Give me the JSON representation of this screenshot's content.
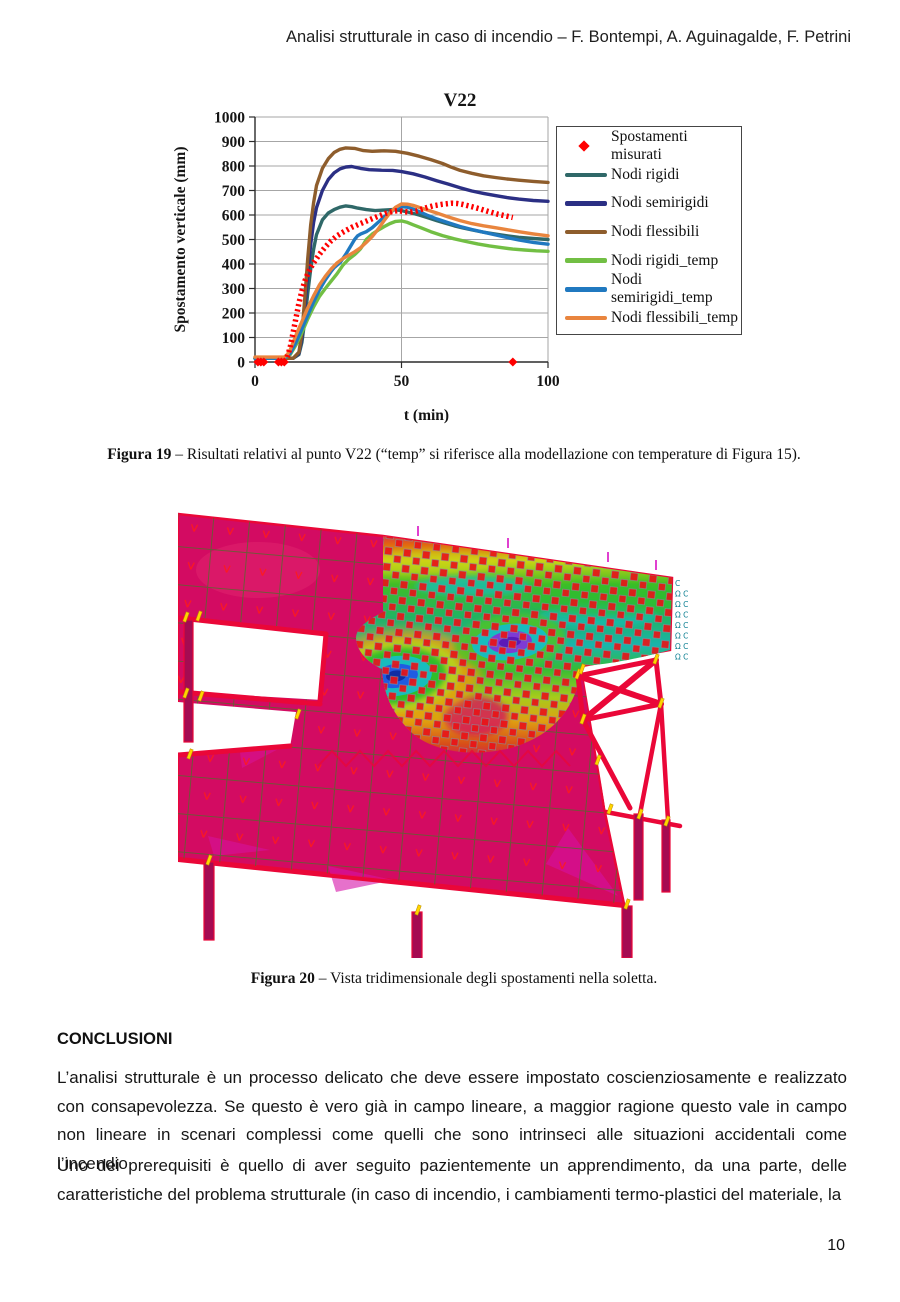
{
  "page": {
    "number": "10"
  },
  "header": {
    "title": "Analisi strutturale in caso di incendio – F. Bontempi, A. Aguinagalde, F. Petrini"
  },
  "chart_data": {
    "type": "line",
    "title": "V22",
    "xlabel": "t (min)",
    "ylabel": "Spostamento verticale (mm)",
    "xlim": [
      0,
      100
    ],
    "ylim": [
      0,
      1000
    ],
    "xticks": [
      0,
      50,
      100
    ],
    "yticks": [
      0,
      100,
      200,
      300,
      400,
      500,
      600,
      700,
      800,
      900,
      1000
    ],
    "grid": true,
    "legend_position": "right",
    "measured": {
      "name": "Spostamenti misurati",
      "color": "#ff0000",
      "marker": "diamond",
      "points": [
        [
          11,
          20
        ],
        [
          12,
          60
        ],
        [
          13,
          120
        ],
        [
          14,
          180
        ],
        [
          15,
          240
        ],
        [
          16,
          290
        ],
        [
          17,
          330
        ],
        [
          18,
          360
        ],
        [
          19,
          385
        ],
        [
          20,
          405
        ],
        [
          22,
          440
        ],
        [
          24,
          470
        ],
        [
          26,
          495
        ],
        [
          28,
          515
        ],
        [
          30,
          530
        ],
        [
          33,
          550
        ],
        [
          36,
          565
        ],
        [
          39,
          580
        ],
        [
          42,
          595
        ],
        [
          45,
          608
        ],
        [
          47,
          615
        ],
        [
          49,
          618
        ],
        [
          51,
          614
        ],
        [
          53,
          612
        ],
        [
          55,
          616
        ],
        [
          57,
          624
        ],
        [
          59,
          632
        ],
        [
          61,
          638
        ],
        [
          64,
          644
        ],
        [
          67,
          648
        ],
        [
          69,
          647
        ],
        [
          71,
          643
        ],
        [
          74,
          634
        ],
        [
          77,
          624
        ],
        [
          80,
          613
        ],
        [
          83,
          603
        ],
        [
          86,
          595
        ],
        [
          88,
          590
        ]
      ],
      "zero_points": [
        [
          1,
          0
        ],
        [
          2,
          0
        ],
        [
          3,
          0
        ],
        [
          8,
          0
        ],
        [
          9,
          0
        ],
        [
          10,
          0
        ],
        [
          88,
          0
        ]
      ]
    },
    "series": [
      {
        "name": "Nodi rigidi",
        "color": "#2f6868",
        "points": [
          [
            0,
            15
          ],
          [
            13,
            15
          ],
          [
            15,
            30
          ],
          [
            16,
            80
          ],
          [
            17,
            170
          ],
          [
            18,
            280
          ],
          [
            19,
            380
          ],
          [
            20,
            460
          ],
          [
            21,
            520
          ],
          [
            23,
            580
          ],
          [
            25,
            608
          ],
          [
            27,
            622
          ],
          [
            29,
            632
          ],
          [
            31,
            637
          ],
          [
            33,
            634
          ],
          [
            35,
            628
          ],
          [
            38,
            622
          ],
          [
            41,
            618
          ],
          [
            44,
            620
          ],
          [
            47,
            622
          ],
          [
            50,
            618
          ],
          [
            53,
            610
          ],
          [
            56,
            600
          ],
          [
            59,
            589
          ],
          [
            62,
            577
          ],
          [
            65,
            566
          ],
          [
            68,
            556
          ],
          [
            71,
            547
          ],
          [
            74,
            539
          ],
          [
            78,
            530
          ],
          [
            82,
            522
          ],
          [
            86,
            515
          ],
          [
            90,
            509
          ],
          [
            95,
            504
          ],
          [
            100,
            500
          ]
        ]
      },
      {
        "name": "Nodi semirigidi",
        "color": "#2b2f84",
        "points": [
          [
            0,
            15
          ],
          [
            13,
            15
          ],
          [
            15,
            35
          ],
          [
            16,
            100
          ],
          [
            17,
            220
          ],
          [
            18,
            360
          ],
          [
            19,
            480
          ],
          [
            20,
            570
          ],
          [
            21,
            630
          ],
          [
            23,
            700
          ],
          [
            25,
            745
          ],
          [
            27,
            772
          ],
          [
            29,
            788
          ],
          [
            31,
            796
          ],
          [
            33,
            798
          ],
          [
            36,
            790
          ],
          [
            39,
            785
          ],
          [
            43,
            783
          ],
          [
            47,
            782
          ],
          [
            50,
            777
          ],
          [
            54,
            768
          ],
          [
            58,
            755
          ],
          [
            62,
            740
          ],
          [
            66,
            726
          ],
          [
            70,
            711
          ],
          [
            74,
            698
          ],
          [
            78,
            688
          ],
          [
            82,
            679
          ],
          [
            86,
            671
          ],
          [
            90,
            665
          ],
          [
            95,
            659
          ],
          [
            100,
            656
          ]
        ]
      },
      {
        "name": "Nodi flessibili",
        "color": "#8e5d2c",
        "points": [
          [
            0,
            15
          ],
          [
            13,
            15
          ],
          [
            15,
            40
          ],
          [
            16,
            120
          ],
          [
            17,
            260
          ],
          [
            18,
            420
          ],
          [
            19,
            560
          ],
          [
            20,
            650
          ],
          [
            21,
            720
          ],
          [
            23,
            790
          ],
          [
            25,
            830
          ],
          [
            27,
            855
          ],
          [
            29,
            868
          ],
          [
            31,
            874
          ],
          [
            34,
            872
          ],
          [
            37,
            863
          ],
          [
            40,
            860
          ],
          [
            44,
            862
          ],
          [
            48,
            860
          ],
          [
            52,
            852
          ],
          [
            56,
            840
          ],
          [
            60,
            826
          ],
          [
            64,
            810
          ],
          [
            67,
            795
          ],
          [
            70,
            782
          ],
          [
            74,
            770
          ],
          [
            78,
            760
          ],
          [
            82,
            753
          ],
          [
            86,
            747
          ],
          [
            90,
            742
          ],
          [
            95,
            737
          ],
          [
            100,
            733
          ]
        ]
      },
      {
        "name": "Nodi rigidi_temp",
        "color": "#72bf44",
        "points": [
          [
            0,
            15
          ],
          [
            10,
            15
          ],
          [
            12,
            30
          ],
          [
            14,
            70
          ],
          [
            16,
            120
          ],
          [
            18,
            175
          ],
          [
            20,
            225
          ],
          [
            22,
            268
          ],
          [
            24,
            300
          ],
          [
            26,
            330
          ],
          [
            28,
            360
          ],
          [
            30,
            395
          ],
          [
            32,
            420
          ],
          [
            34,
            438
          ],
          [
            35,
            450
          ],
          [
            36,
            462
          ],
          [
            37,
            480
          ],
          [
            38,
            500
          ],
          [
            40,
            522
          ],
          [
            42,
            538
          ],
          [
            44,
            552
          ],
          [
            46,
            565
          ],
          [
            48,
            574
          ],
          [
            50,
            576
          ],
          [
            52,
            570
          ],
          [
            54,
            560
          ],
          [
            57,
            546
          ],
          [
            60,
            532
          ],
          [
            64,
            516
          ],
          [
            68,
            503
          ],
          [
            72,
            492
          ],
          [
            76,
            482
          ],
          [
            80,
            474
          ],
          [
            84,
            467
          ],
          [
            88,
            461
          ],
          [
            92,
            457
          ],
          [
            96,
            454
          ],
          [
            100,
            452
          ]
        ]
      },
      {
        "name": "Nodi semirigidi_temp",
        "color": "#2079c0",
        "points": [
          [
            0,
            15
          ],
          [
            10,
            15
          ],
          [
            12,
            35
          ],
          [
            14,
            80
          ],
          [
            16,
            135
          ],
          [
            18,
            190
          ],
          [
            20,
            245
          ],
          [
            22,
            295
          ],
          [
            24,
            335
          ],
          [
            26,
            370
          ],
          [
            27,
            385
          ],
          [
            28,
            395
          ],
          [
            29,
            405
          ],
          [
            31,
            440
          ],
          [
            33,
            480
          ],
          [
            34,
            500
          ],
          [
            35,
            515
          ],
          [
            36,
            522
          ],
          [
            38,
            532
          ],
          [
            40,
            548
          ],
          [
            42,
            570
          ],
          [
            44,
            592
          ],
          [
            46,
            610
          ],
          [
            48,
            625
          ],
          [
            50,
            634
          ],
          [
            52,
            632
          ],
          [
            54,
            624
          ],
          [
            56,
            614
          ],
          [
            59,
            598
          ],
          [
            62,
            584
          ],
          [
            66,
            568
          ],
          [
            70,
            553
          ],
          [
            74,
            541
          ],
          [
            78,
            530
          ],
          [
            82,
            519
          ],
          [
            86,
            508
          ],
          [
            90,
            498
          ],
          [
            95,
            488
          ],
          [
            100,
            481
          ]
        ]
      },
      {
        "name": "Nodi flessibili_temp",
        "color": "#e9853e",
        "points": [
          [
            0,
            20
          ],
          [
            10,
            20
          ],
          [
            11,
            30
          ],
          [
            12,
            50
          ],
          [
            13,
            80
          ],
          [
            14,
            110
          ],
          [
            16,
            165
          ],
          [
            18,
            220
          ],
          [
            20,
            270
          ],
          [
            22,
            315
          ],
          [
            24,
            350
          ],
          [
            26,
            380
          ],
          [
            28,
            404
          ],
          [
            30,
            422
          ],
          [
            32,
            436
          ],
          [
            34,
            450
          ],
          [
            36,
            466
          ],
          [
            38,
            488
          ],
          [
            40,
            512
          ],
          [
            42,
            542
          ],
          [
            44,
            576
          ],
          [
            46,
            608
          ],
          [
            48,
            632
          ],
          [
            50,
            645
          ],
          [
            52,
            644
          ],
          [
            54,
            639
          ],
          [
            56,
            631
          ],
          [
            59,
            620
          ],
          [
            62,
            608
          ],
          [
            66,
            592
          ],
          [
            70,
            577
          ],
          [
            74,
            565
          ],
          [
            78,
            556
          ],
          [
            82,
            548
          ],
          [
            86,
            540
          ],
          [
            90,
            532
          ],
          [
            95,
            523
          ],
          [
            100,
            515
          ]
        ]
      }
    ]
  },
  "figure19_caption": {
    "label": "Figura 19",
    "text": " – Risultati relativi al punto V22 (“temp” si riferisce alla modellazione con temperature di Figura 15)."
  },
  "figure20_caption": {
    "label": "Figura 20",
    "text": " – Vista tridimensionale degli spostamenti nella soletta."
  },
  "fem": {
    "edge_labels": [
      "C",
      "Ω C",
      "Ω C",
      "Ω C",
      "Ω C",
      "Ω C",
      "Ω C",
      "Ω C"
    ],
    "colors": {
      "slab": "#d30b62",
      "mesh": "#4f6d2a",
      "beam": "#ea0738",
      "column": "#a50b52",
      "squares": "#e81418",
      "marker": "#ffd400",
      "label": "#0b7f92",
      "magenta": "#d613a8",
      "hotspot_center": "#0f2da3",
      "hotspot_secondary": "#7e3bd4"
    }
  },
  "conclusions": {
    "heading": "CONCLUSIONI",
    "paragraphs": [
      "L’analisi strutturale è un processo delicato che deve essere impostato coscienziosamente e realizzato con consapevolezza. Se questo è vero già in campo lineare, a maggior ragione questo vale in campo non lineare in scenari complessi come quelli che sono intrinseci alle situazioni accidentali come l’incendio.",
      "Uno dei prerequisiti è quello di aver seguito pazientemente un apprendimento, da una parte, delle caratteristiche del problema strutturale (in caso di incendio, i cambiamenti termo-plastici del materiale, la"
    ]
  }
}
